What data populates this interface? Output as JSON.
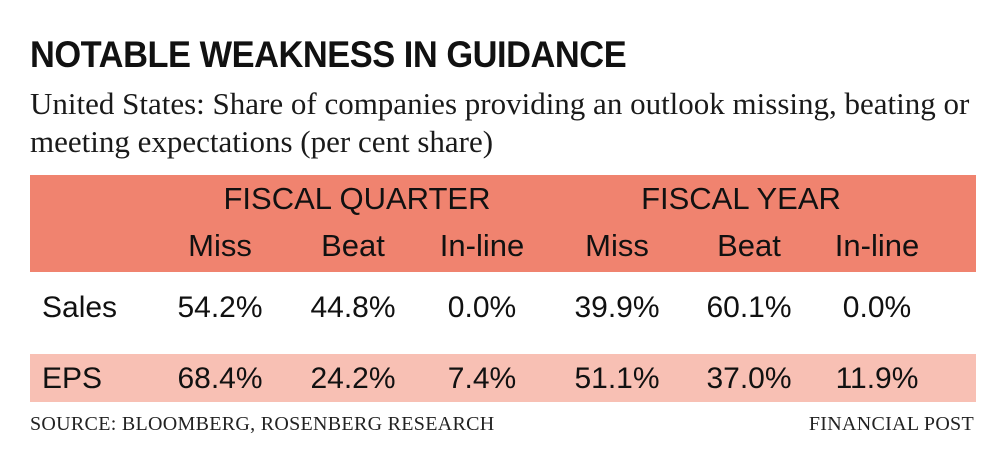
{
  "title": "NOTABLE WEAKNESS IN GUIDANCE",
  "subtitle": "United States: Share of companies providing an outlook missing, beating or meeting expectations (per cent share)",
  "chart_data": {
    "type": "table",
    "groups": [
      {
        "name": "FISCAL QUARTER",
        "columns": [
          "Miss",
          "Beat",
          "In-line"
        ]
      },
      {
        "name": "FISCAL YEAR",
        "columns": [
          "Miss",
          "Beat",
          "In-line"
        ]
      }
    ],
    "rows": [
      {
        "label": "Sales",
        "values": [
          "54.2%",
          "44.8%",
          "0.0%",
          "39.9%",
          "60.1%",
          "0.0%"
        ]
      },
      {
        "label": "EPS",
        "values": [
          "68.4%",
          "24.2%",
          "7.4%",
          "51.1%",
          "37.0%",
          "11.9%"
        ]
      }
    ]
  },
  "colors": {
    "header_band": "#f0836f",
    "eps_band": "#f8c0b4"
  },
  "source": "SOURCE: BLOOMBERG, ROSENBERG RESEARCH",
  "credit": "FINANCIAL POST"
}
